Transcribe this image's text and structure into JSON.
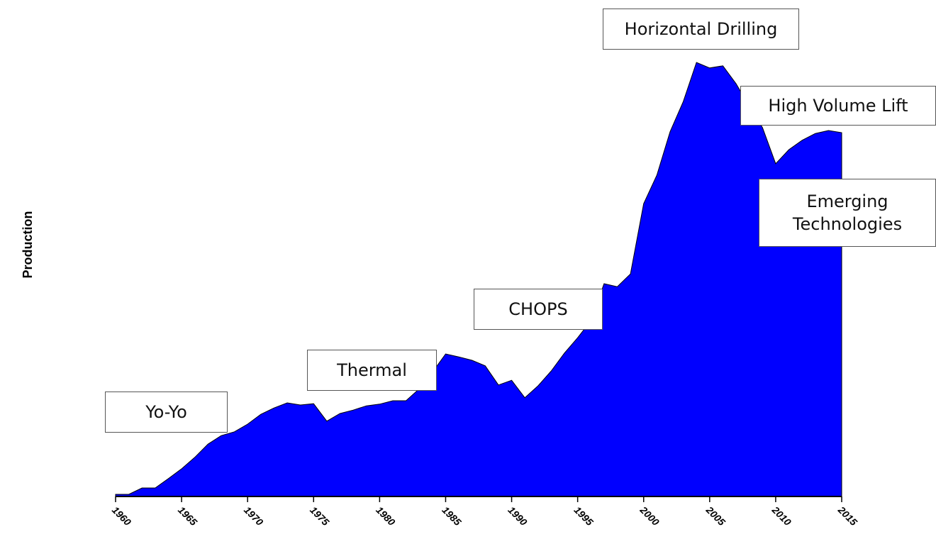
{
  "chart_data": {
    "type": "area",
    "ylabel": "Production",
    "color": "#0000ff",
    "x": [
      1960,
      1961,
      1962,
      1963,
      1964,
      1965,
      1966,
      1967,
      1968,
      1969,
      1970,
      1971,
      1972,
      1973,
      1974,
      1975,
      1976,
      1977,
      1978,
      1979,
      1980,
      1981,
      1982,
      1983,
      1984,
      1985,
      1986,
      1987,
      1988,
      1989,
      1990,
      1991,
      1992,
      1993,
      1994,
      1995,
      1996,
      1997,
      1998,
      1999,
      2000,
      2001,
      2002,
      2003,
      2004,
      2005,
      2006,
      2007,
      2008,
      2009,
      2010,
      2011,
      2012,
      2013,
      2014,
      2015
    ],
    "values": [
      0.5,
      0.5,
      2,
      2,
      4.2,
      6.5,
      9.2,
      12.3,
      14.3,
      15.2,
      17,
      19.3,
      20.8,
      22,
      21.5,
      21.8,
      17.7,
      19.5,
      20.3,
      21.3,
      21.7,
      22.5,
      22.5,
      25.3,
      29.2,
      33.5,
      32.8,
      32,
      30.7,
      26.2,
      27.3,
      23.2,
      26,
      29.5,
      33.7,
      37.3,
      41.3,
      50,
      49.3,
      52.3,
      68.8,
      75.5,
      85.7,
      92.8,
      102,
      100.7,
      101.2,
      97,
      91.7,
      86.7,
      78.2,
      81.5,
      83.7,
      85.3,
      86,
      85.5
    ],
    "xlim": [
      1960,
      2015
    ],
    "xticks": [
      1960,
      1965,
      1970,
      1975,
      1980,
      1985,
      1990,
      1995,
      2000,
      2005,
      2010,
      2015
    ],
    "ylim": [
      0,
      110
    ],
    "annotations": [
      "Yo-Yo",
      "Thermal",
      "CHOPS",
      "Horizontal Drilling",
      "High Volume Lift",
      "Emerging Technologies"
    ]
  }
}
